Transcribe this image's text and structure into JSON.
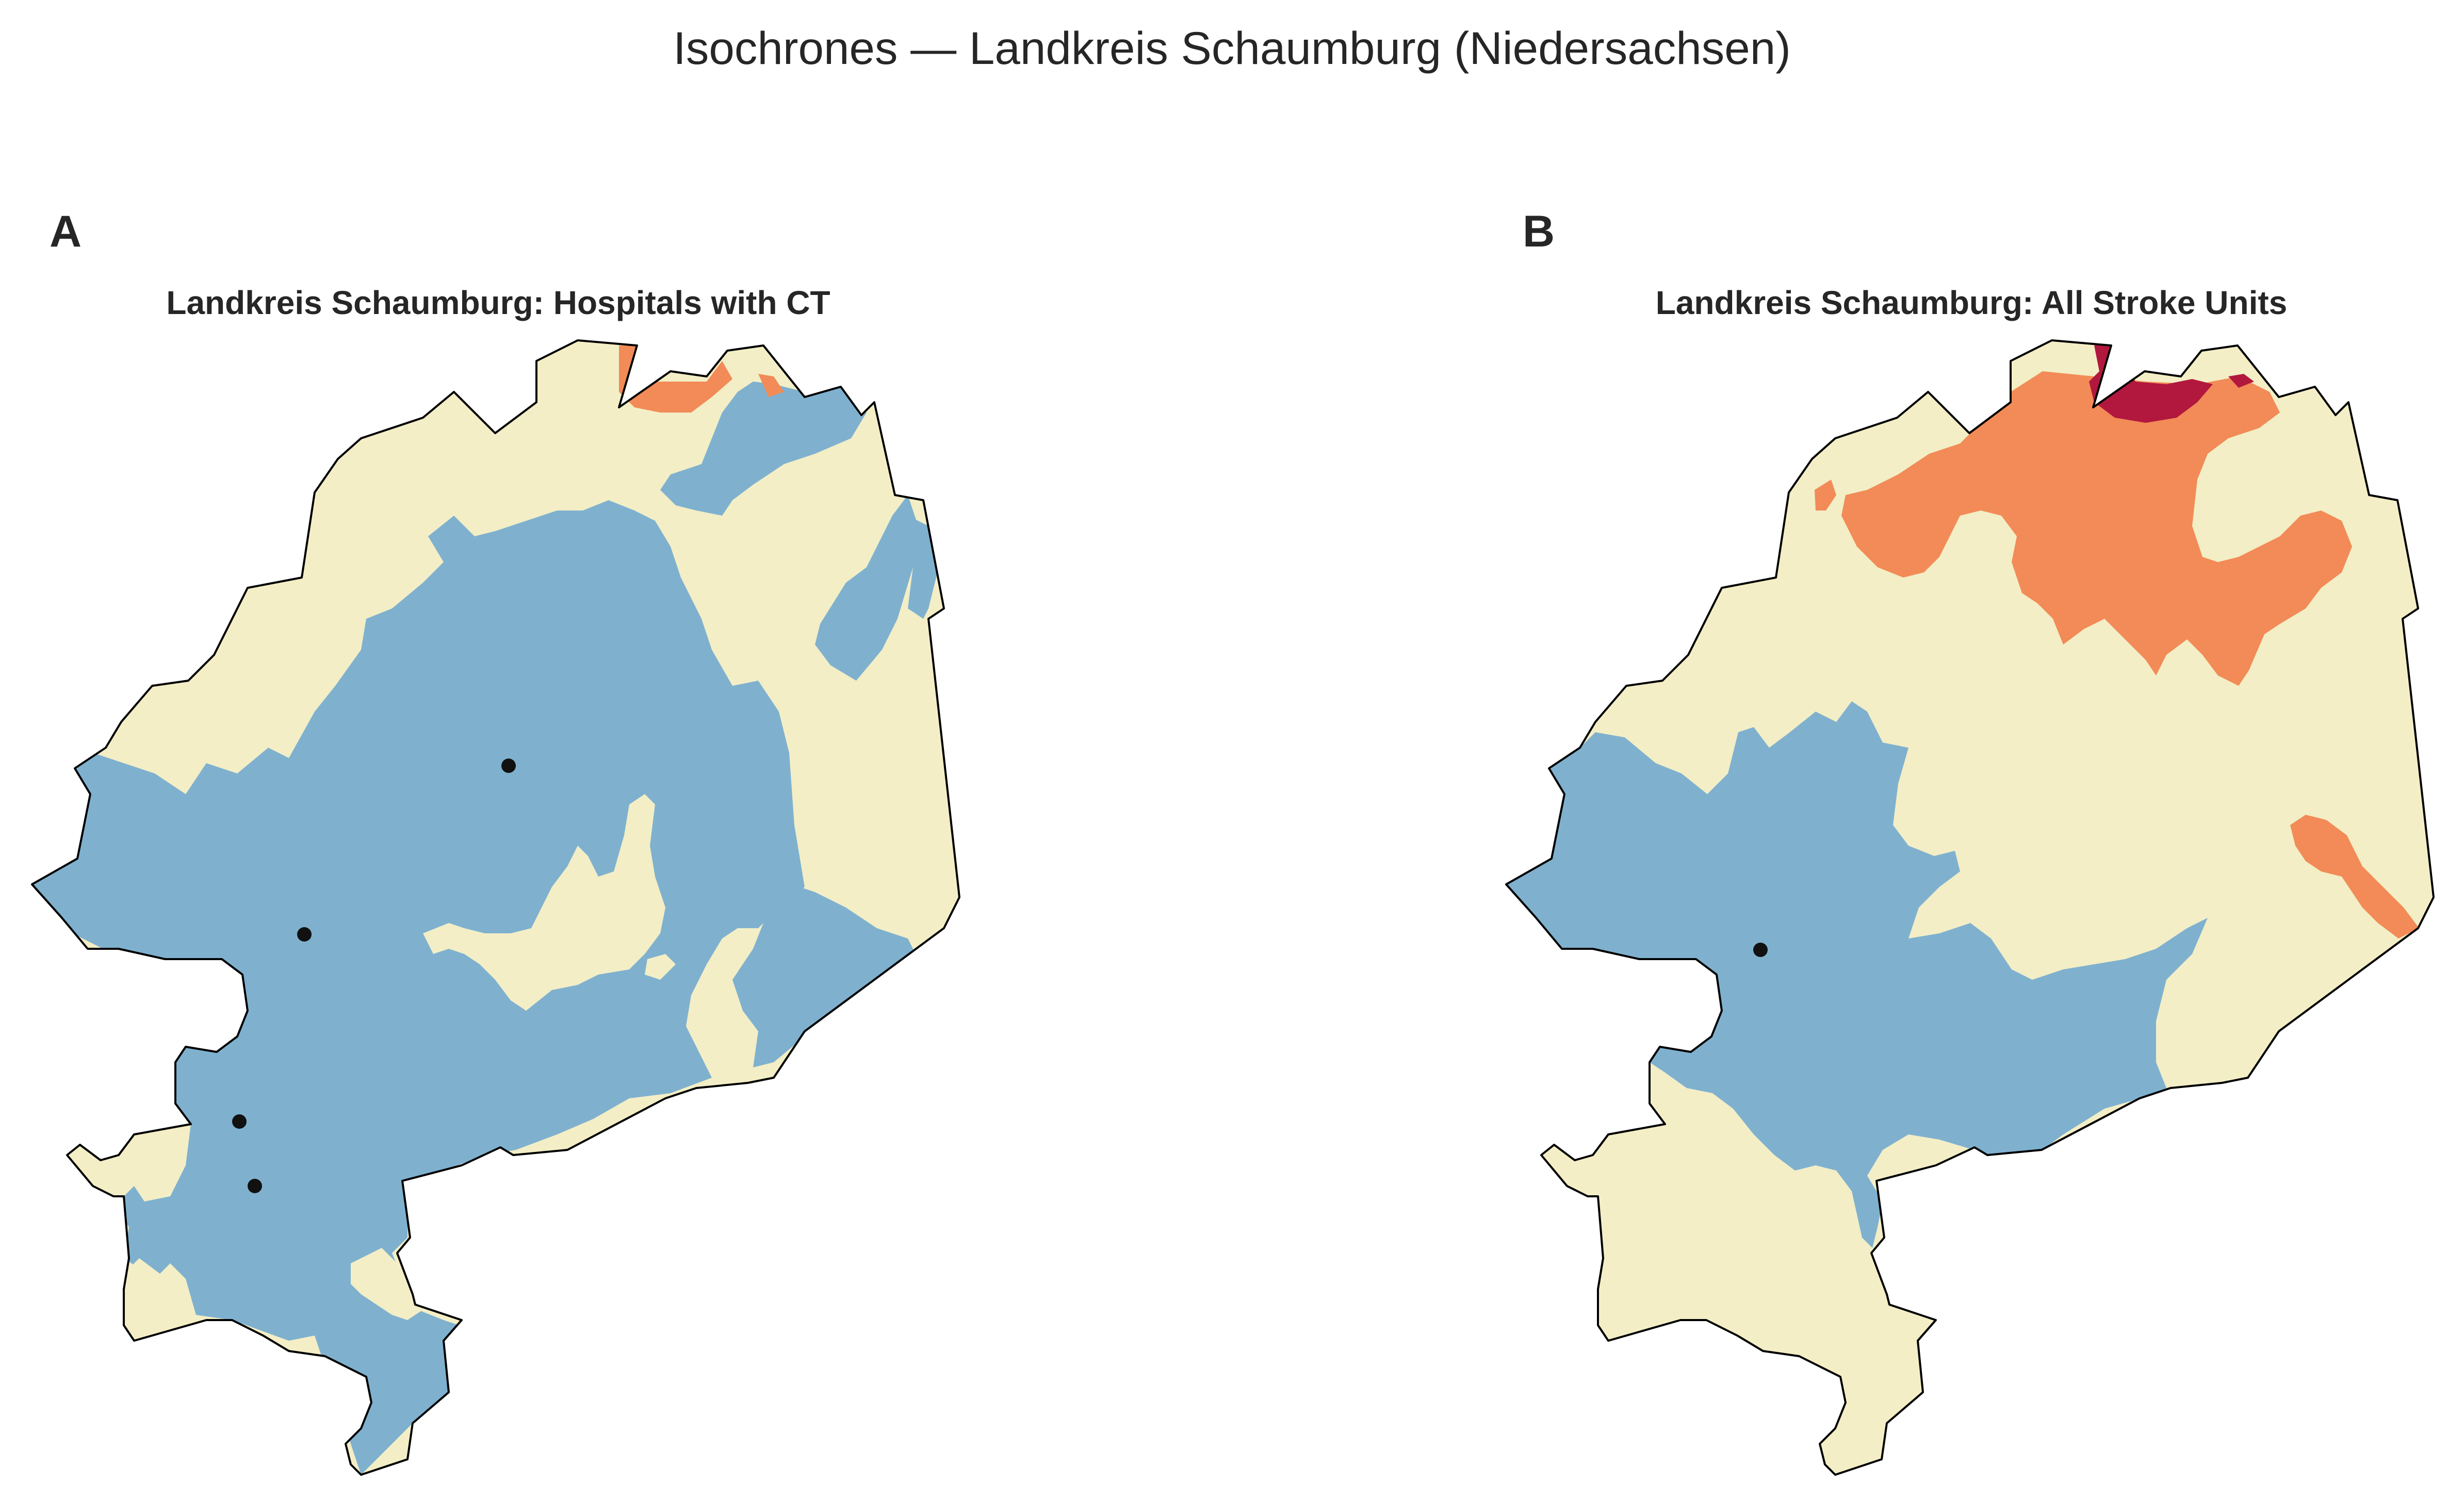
{
  "figure": {
    "title": "Isochrones — Landkreis Schaumburg (Niedersachsen)"
  },
  "colors": {
    "blue": "#7fb1cf",
    "cream": "#f3eec6",
    "orange": "#f28b57",
    "crimson": "#b2183e",
    "outline": "#000000",
    "marker": "#111111"
  },
  "panels": [
    {
      "letter": "A",
      "title": "Landkreis Schaumburg: Hospitals with CT",
      "markers": 4
    },
    {
      "letter": "B",
      "title": "Landkreis Schaumburg: All Stroke Units",
      "markers": 1
    }
  ]
}
